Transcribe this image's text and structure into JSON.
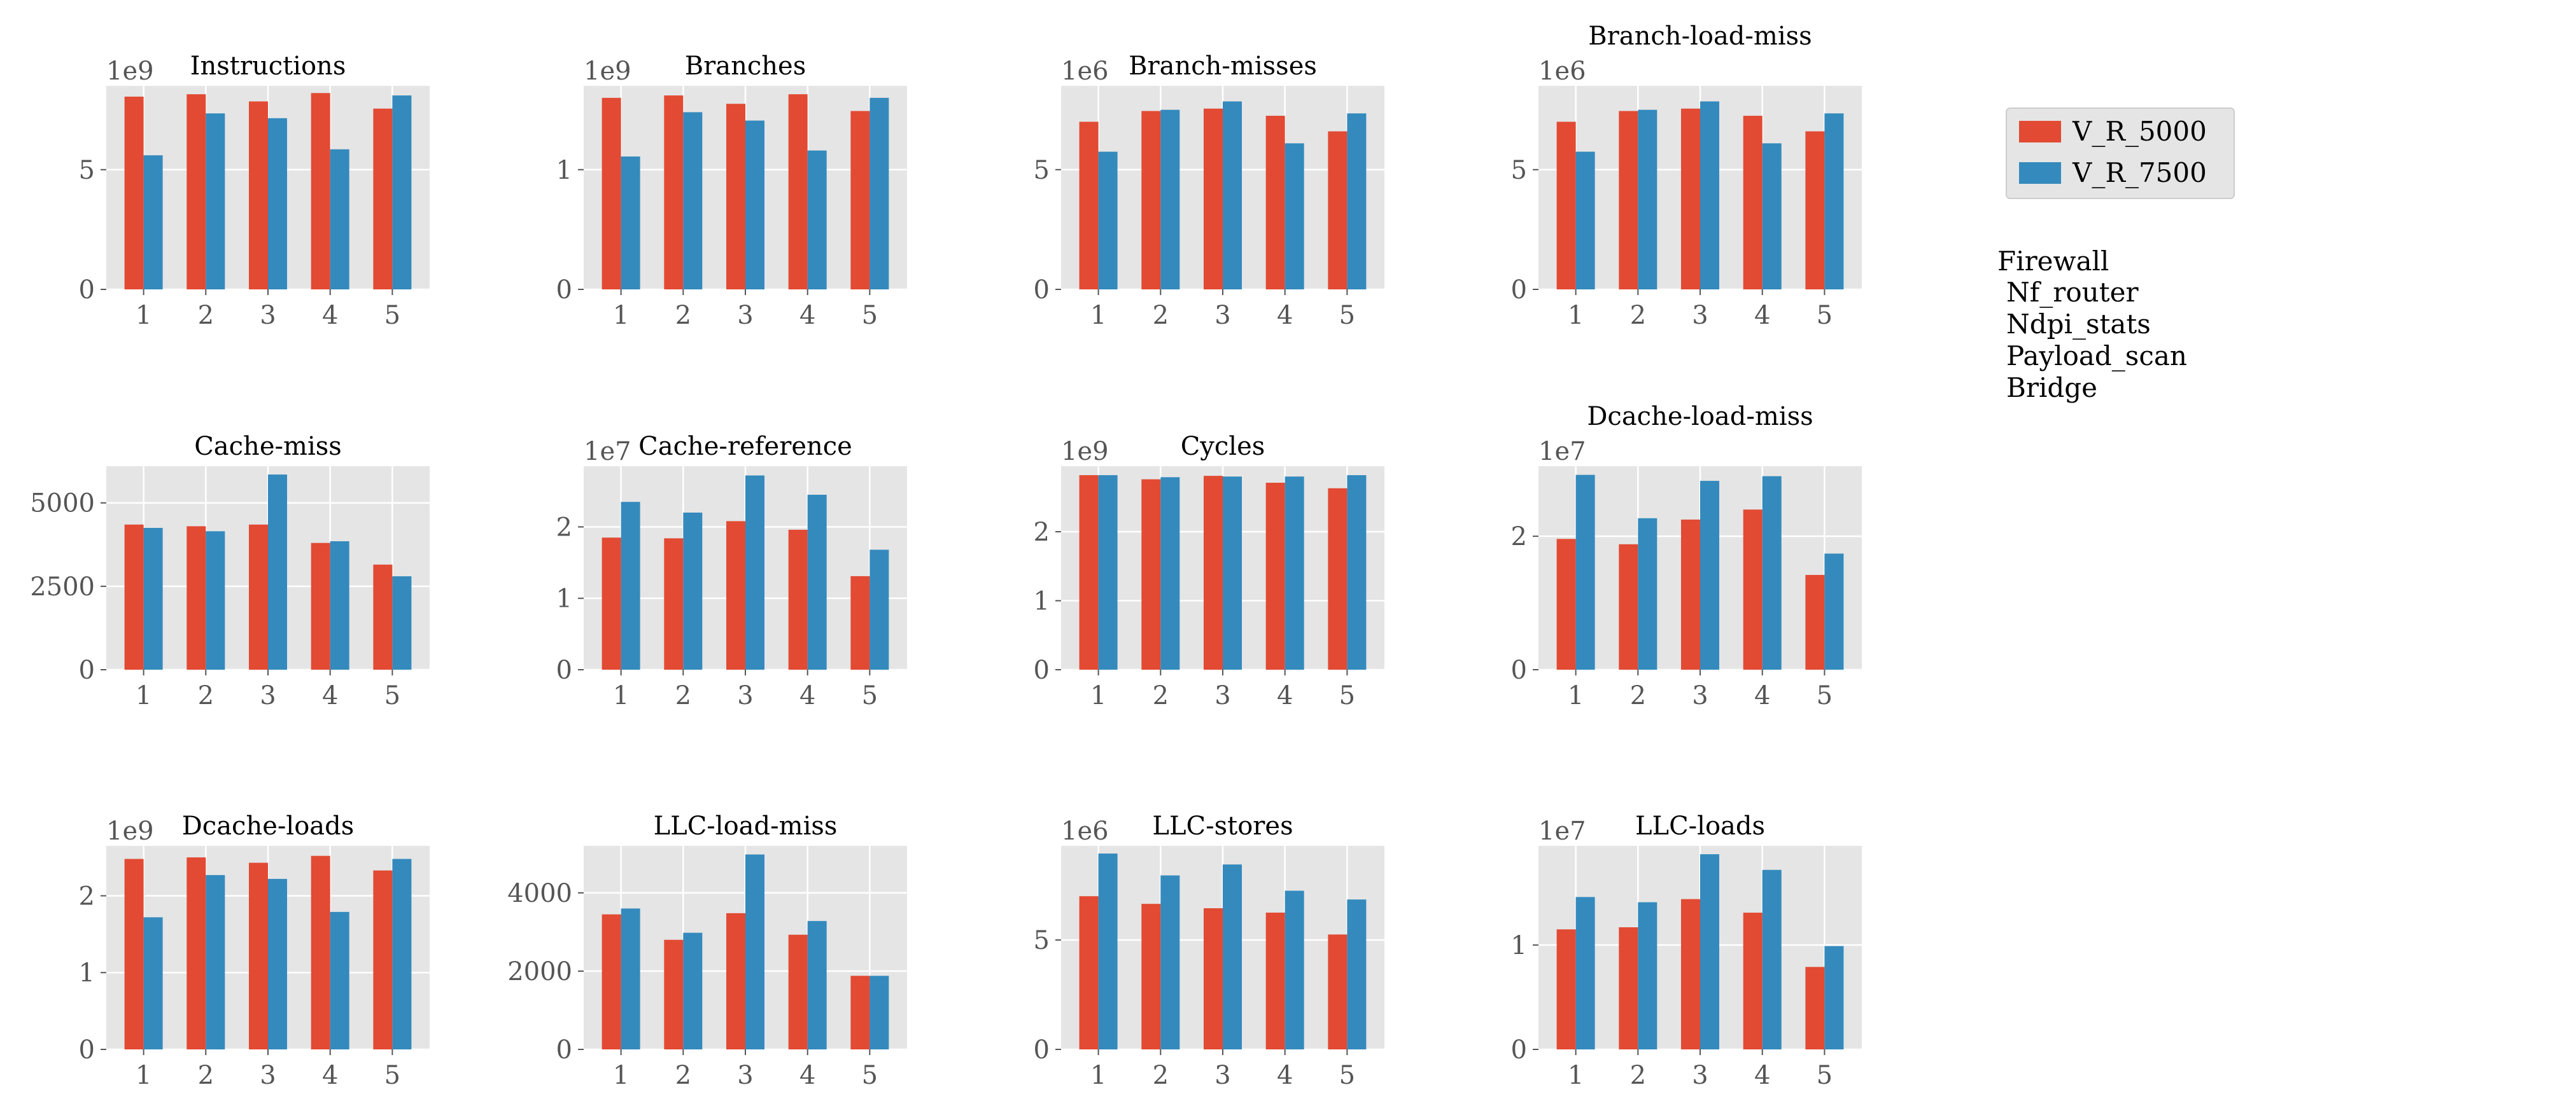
{
  "legend": {
    "entries": [
      {
        "name": "V_R_5000",
        "color": "#E24A33"
      },
      {
        "name": "V_R_7500",
        "color": "#348ABD"
      }
    ]
  },
  "note_lines": [
    "Firewall",
    "Nf_router",
    "Ndpi_stats",
    "Payload_scan",
    "Bridge"
  ],
  "colors": {
    "panel_bg": "#E5E5E5",
    "grid": "#FFFFFF",
    "tick_text": "#555555",
    "series_1": "#E24A33",
    "series_2": "#348ABD"
  },
  "chart_data": [
    {
      "type": "bar",
      "title": "Instructions",
      "offset_text": "1e9",
      "categories": [
        "1",
        "2",
        "3",
        "4",
        "5"
      ],
      "yticks": [
        0,
        5
      ],
      "ylim": [
        0,
        8.5
      ],
      "series": [
        {
          "name": "V_R_5000",
          "values": [
            8.05,
            8.15,
            7.85,
            8.2,
            7.55
          ]
        },
        {
          "name": "V_R_7500",
          "values": [
            5.6,
            7.35,
            7.15,
            5.85,
            8.1
          ]
        }
      ]
    },
    {
      "type": "bar",
      "title": "Branches",
      "offset_text": "1e9",
      "categories": [
        "1",
        "2",
        "3",
        "4",
        "5"
      ],
      "yticks": [
        0,
        1
      ],
      "ylim": [
        0,
        1.7
      ],
      "series": [
        {
          "name": "V_R_5000",
          "values": [
            1.6,
            1.62,
            1.55,
            1.63,
            1.49
          ]
        },
        {
          "name": "V_R_7500",
          "values": [
            1.11,
            1.48,
            1.41,
            1.16,
            1.6
          ]
        }
      ]
    },
    {
      "type": "bar",
      "title": "Branch-misses",
      "offset_text": "1e6",
      "categories": [
        "1",
        "2",
        "3",
        "4",
        "5"
      ],
      "yticks": [
        0,
        5
      ],
      "ylim": [
        0,
        8.5
      ],
      "series": [
        {
          "name": "V_R_5000",
          "values": [
            7.0,
            7.45,
            7.55,
            7.25,
            6.6
          ]
        },
        {
          "name": "V_R_7500",
          "values": [
            5.75,
            7.5,
            7.85,
            6.1,
            7.35
          ]
        }
      ]
    },
    {
      "type": "bar",
      "title": "Branch-load-miss",
      "offset_text": "1e6",
      "categories": [
        "1",
        "2",
        "3",
        "4",
        "5"
      ],
      "yticks": [
        0,
        5
      ],
      "ylim": [
        0,
        8.5
      ],
      "series": [
        {
          "name": "V_R_5000",
          "values": [
            7.0,
            7.45,
            7.55,
            7.25,
            6.6
          ]
        },
        {
          "name": "V_R_7500",
          "values": [
            5.75,
            7.5,
            7.85,
            6.1,
            7.35
          ]
        }
      ]
    },
    {
      "type": "bar",
      "title": "Cache-miss",
      "offset_text": "",
      "categories": [
        "1",
        "2",
        "3",
        "4",
        "5"
      ],
      "yticks": [
        0,
        2500,
        5000
      ],
      "ylim": [
        0,
        6100
      ],
      "series": [
        {
          "name": "V_R_5000",
          "values": [
            4350,
            4300,
            4350,
            3800,
            3150
          ]
        },
        {
          "name": "V_R_7500",
          "values": [
            4250,
            4150,
            5850,
            3850,
            2800
          ]
        }
      ]
    },
    {
      "type": "bar",
      "title": "Cache-reference",
      "offset_text": "1e7",
      "categories": [
        "1",
        "2",
        "3",
        "4",
        "5"
      ],
      "yticks": [
        0,
        1,
        2
      ],
      "ylim": [
        0,
        2.85
      ],
      "series": [
        {
          "name": "V_R_5000",
          "values": [
            1.85,
            1.84,
            2.08,
            1.96,
            1.31
          ]
        },
        {
          "name": "V_R_7500",
          "values": [
            2.35,
            2.2,
            2.72,
            2.45,
            1.68
          ]
        }
      ]
    },
    {
      "type": "bar",
      "title": "Cycles",
      "offset_text": "1e9",
      "categories": [
        "1",
        "2",
        "3",
        "4",
        "5"
      ],
      "yticks": [
        0,
        1,
        2
      ],
      "ylim": [
        0,
        2.95
      ],
      "series": [
        {
          "name": "V_R_5000",
          "values": [
            2.82,
            2.76,
            2.81,
            2.71,
            2.63
          ]
        },
        {
          "name": "V_R_7500",
          "values": [
            2.82,
            2.79,
            2.8,
            2.8,
            2.82
          ]
        }
      ]
    },
    {
      "type": "bar",
      "title": "Dcache-load-miss",
      "offset_text": "1e7",
      "categories": [
        "1",
        "2",
        "3",
        "4",
        "5"
      ],
      "yticks": [
        0,
        2
      ],
      "ylim": [
        0,
        3.05
      ],
      "series": [
        {
          "name": "V_R_5000",
          "values": [
            1.96,
            1.88,
            2.25,
            2.4,
            1.42
          ]
        },
        {
          "name": "V_R_7500",
          "values": [
            2.92,
            2.27,
            2.83,
            2.9,
            1.74
          ]
        }
      ]
    },
    {
      "type": "bar",
      "title": "Dcache-loads",
      "offset_text": "1e9",
      "categories": [
        "1",
        "2",
        "3",
        "4",
        "5"
      ],
      "yticks": [
        0,
        1,
        2
      ],
      "ylim": [
        0,
        2.65
      ],
      "series": [
        {
          "name": "V_R_5000",
          "values": [
            2.48,
            2.5,
            2.43,
            2.52,
            2.33
          ]
        },
        {
          "name": "V_R_7500",
          "values": [
            1.72,
            2.27,
            2.22,
            1.79,
            2.48
          ]
        }
      ]
    },
    {
      "type": "bar",
      "title": "LLC-load-miss",
      "offset_text": "",
      "categories": [
        "1",
        "2",
        "3",
        "4",
        "5"
      ],
      "yticks": [
        0,
        2000,
        4000
      ],
      "ylim": [
        0,
        5200
      ],
      "series": [
        {
          "name": "V_R_5000",
          "values": [
            3450,
            2800,
            3480,
            2930,
            1880
          ]
        },
        {
          "name": "V_R_7500",
          "values": [
            3600,
            2980,
            4980,
            3280,
            1880
          ]
        }
      ]
    },
    {
      "type": "bar",
      "title": "LLC-stores",
      "offset_text": "1e6",
      "categories": [
        "1",
        "2",
        "3",
        "4",
        "5"
      ],
      "yticks": [
        0,
        5
      ],
      "ylim": [
        0,
        9.3
      ],
      "series": [
        {
          "name": "V_R_5000",
          "values": [
            7.0,
            6.65,
            6.45,
            6.25,
            5.25
          ]
        },
        {
          "name": "V_R_7500",
          "values": [
            8.95,
            7.95,
            8.45,
            7.25,
            6.85
          ]
        }
      ]
    },
    {
      "type": "bar",
      "title": "LLC-loads",
      "offset_text": "1e7",
      "categories": [
        "1",
        "2",
        "3",
        "4",
        "5"
      ],
      "yticks": [
        0,
        1
      ],
      "ylim": [
        0,
        1.95
      ],
      "series": [
        {
          "name": "V_R_5000",
          "values": [
            1.15,
            1.17,
            1.44,
            1.31,
            0.79
          ]
        },
        {
          "name": "V_R_7500",
          "values": [
            1.46,
            1.41,
            1.87,
            1.72,
            0.99
          ]
        }
      ]
    }
  ]
}
